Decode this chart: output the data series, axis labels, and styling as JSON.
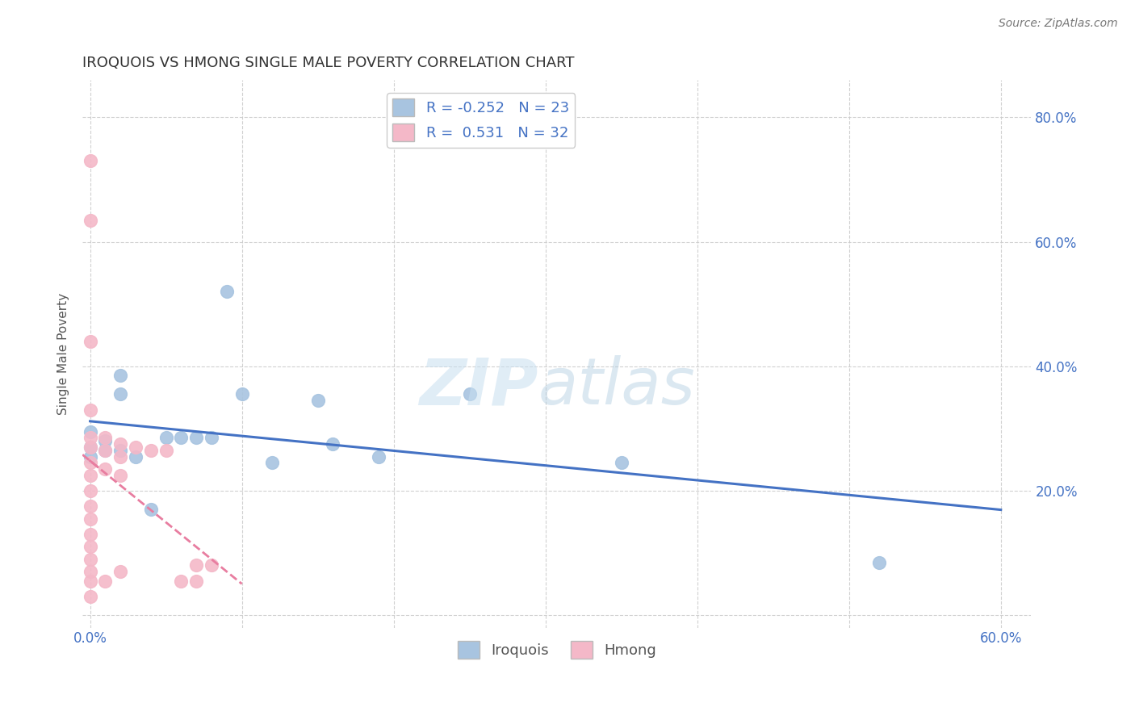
{
  "title": "IROQUOIS VS HMONG SINGLE MALE POVERTY CORRELATION CHART",
  "source": "Source: ZipAtlas.com",
  "ylabel": "Single Male Poverty",
  "xlim": [
    -0.005,
    0.62
  ],
  "ylim": [
    -0.02,
    0.86
  ],
  "xtick_positions": [
    0.0,
    0.1,
    0.2,
    0.3,
    0.4,
    0.5,
    0.6
  ],
  "xtick_labels": [
    "0.0%",
    "",
    "",
    "",
    "",
    "",
    "60.0%"
  ],
  "ytick_positions": [
    0.0,
    0.2,
    0.4,
    0.6,
    0.8
  ],
  "ytick_labels": [
    "",
    "20.0%",
    "40.0%",
    "60.0%",
    "80.0%"
  ],
  "iroquois_color": "#a8c4e0",
  "hmong_color": "#f4b8c8",
  "iroquois_line_color": "#4472c4",
  "hmong_line_color": "#e87da0",
  "iroquois_R": -0.252,
  "iroquois_N": 23,
  "hmong_R": 0.531,
  "hmong_N": 32,
  "legend_R_color": "#4472c4",
  "iroquois_x": [
    0.0,
    0.0,
    0.0,
    0.01,
    0.01,
    0.02,
    0.02,
    0.02,
    0.03,
    0.04,
    0.05,
    0.06,
    0.07,
    0.08,
    0.09,
    0.1,
    0.12,
    0.15,
    0.16,
    0.19,
    0.25,
    0.35,
    0.52
  ],
  "iroquois_y": [
    0.295,
    0.27,
    0.255,
    0.28,
    0.265,
    0.385,
    0.355,
    0.265,
    0.255,
    0.17,
    0.285,
    0.285,
    0.285,
    0.285,
    0.52,
    0.355,
    0.245,
    0.345,
    0.275,
    0.255,
    0.355,
    0.245,
    0.085
  ],
  "hmong_x": [
    0.0,
    0.0,
    0.0,
    0.0,
    0.0,
    0.0,
    0.0,
    0.0,
    0.0,
    0.0,
    0.0,
    0.0,
    0.0,
    0.0,
    0.0,
    0.0,
    0.0,
    0.01,
    0.01,
    0.01,
    0.01,
    0.02,
    0.02,
    0.02,
    0.02,
    0.03,
    0.04,
    0.05,
    0.06,
    0.07,
    0.07,
    0.08
  ],
  "hmong_y": [
    0.73,
    0.635,
    0.44,
    0.33,
    0.285,
    0.27,
    0.245,
    0.225,
    0.2,
    0.175,
    0.155,
    0.13,
    0.11,
    0.09,
    0.07,
    0.055,
    0.03,
    0.285,
    0.265,
    0.235,
    0.055,
    0.275,
    0.255,
    0.225,
    0.07,
    0.27,
    0.265,
    0.265,
    0.055,
    0.055,
    0.08,
    0.08
  ],
  "hmong_line_x0": -0.005,
  "hmong_line_x1": 0.08,
  "iroquois_line_x0": 0.0,
  "iroquois_line_x1": 0.6
}
